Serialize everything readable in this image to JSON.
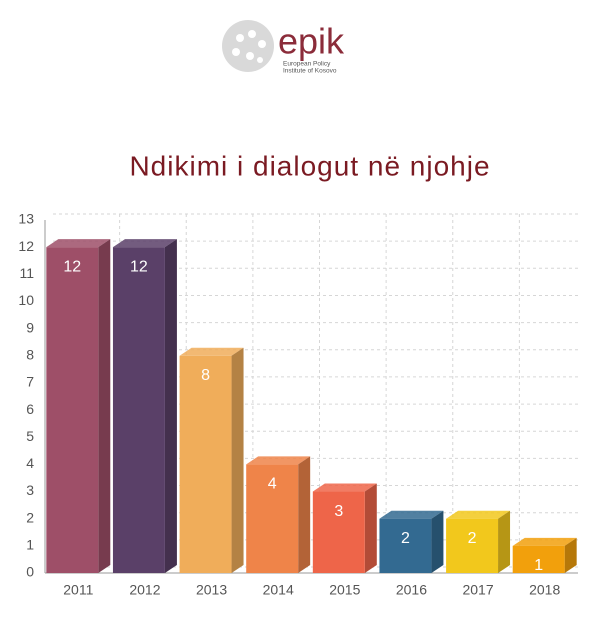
{
  "logo": {
    "name": "epik",
    "line1": "European Policy",
    "line2": "Institute of Kosovo"
  },
  "chart_data": {
    "type": "bar",
    "title": "Ndikimi i dialogut në njohje",
    "categories": [
      "2011",
      "2012",
      "2013",
      "2014",
      "2015",
      "2016",
      "2017",
      "2018"
    ],
    "values": [
      12,
      12,
      8,
      4,
      3,
      2,
      2,
      1
    ],
    "colors": [
      "#9e4f68",
      "#5a4068",
      "#f0ad5a",
      "#ef8449",
      "#ee6549",
      "#336a91",
      "#f2c81c",
      "#f2a00c"
    ],
    "ylim": [
      0,
      13
    ],
    "yticks": [
      0,
      1,
      2,
      3,
      4,
      5,
      6,
      7,
      8,
      9,
      10,
      11,
      12,
      13
    ],
    "grid": true
  }
}
